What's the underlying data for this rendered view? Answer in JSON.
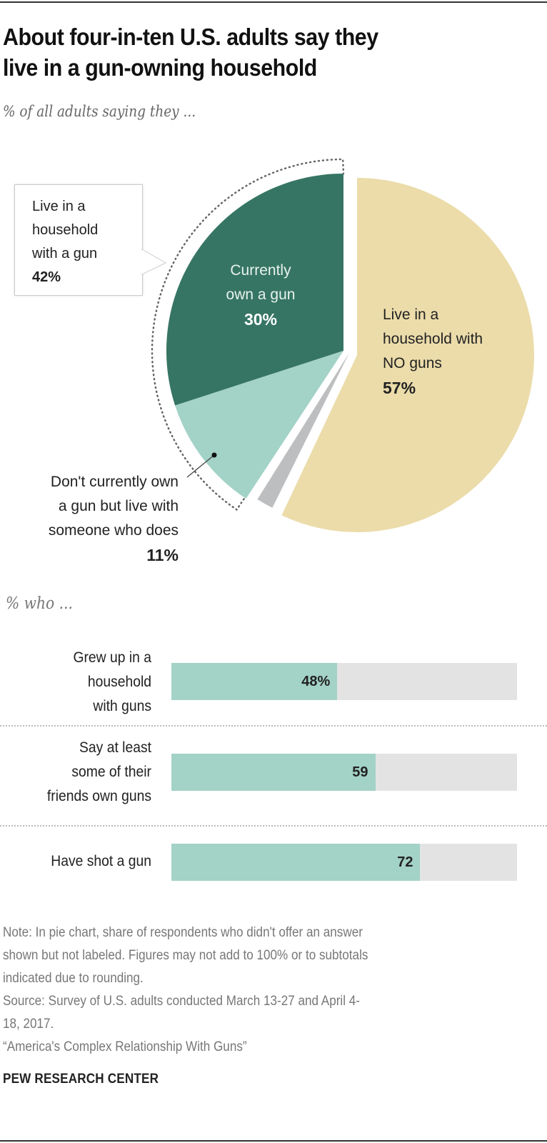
{
  "header": {
    "title_line1": "About four-in-ten U.S. adults say they",
    "title_line2": "live in a gun-owning household",
    "subtitle": "% of all adults saying they ..."
  },
  "pie": {
    "callout": {
      "line1": "Live in a",
      "line2": "household",
      "line3": "with a gun",
      "value": "42%"
    },
    "own": {
      "line1": "Currently",
      "line2": "own a gun",
      "value": "30%"
    },
    "no_guns": {
      "line1": "Live in a",
      "line2": "household with",
      "line3": "NO guns",
      "value": "57%"
    },
    "live_with": {
      "line1": "Don't currently own",
      "line2": "a gun but live with",
      "line3": "someone who does",
      "value": "11%"
    }
  },
  "bars": {
    "section_label": "% who ...",
    "rows": [
      {
        "label_lines": [
          "Grew up in a",
          "household",
          "with guns"
        ],
        "value": 48,
        "value_label": "48%"
      },
      {
        "label_lines": [
          "Say at least",
          "some of their",
          "friends own guns"
        ],
        "value": 59,
        "value_label": "59"
      },
      {
        "label_lines": [
          "Have shot a gun"
        ],
        "value": 72,
        "value_label": "72"
      }
    ]
  },
  "footer": {
    "note_line1": "Note: In pie chart, share of respondents who didn't offer an answer",
    "note_line2": "shown but not labeled. Figures may not add to 100% or to subtotals",
    "note_line3": "indicated due to rounding.",
    "source_line1": "Source: Survey of U.S. adults conducted March 13-27 and April 4-",
    "source_line2": "18, 2017.",
    "report": "“America's Complex Relationship With Guns”",
    "brand": "PEW RESEARCH CENTER"
  },
  "colors": {
    "own_gun": "#367563",
    "live_with_owner": "#a3d2c6",
    "no_answer": "#bdbec0",
    "no_guns": "#ebdcaa",
    "bar_fill": "#a3d2c6",
    "bar_track": "#e3e3e4"
  },
  "chart_data": [
    {
      "type": "pie",
      "title": "About four-in-ten U.S. adults say they live in a gun-owning household",
      "subtitle": "% of all adults saying they ...",
      "categories": [
        "Currently own a gun",
        "Don't currently own a gun but live with someone who does",
        "No answer (not labeled)",
        "Live in a household with NO guns"
      ],
      "values": [
        30,
        11,
        2,
        57
      ],
      "annotations": [
        {
          "text": "Live in a household with a gun",
          "value": 42,
          "spans": [
            "Currently own a gun",
            "Don't currently own a gun but live with someone who does"
          ]
        }
      ]
    },
    {
      "type": "bar",
      "orientation": "horizontal",
      "title": "% who ...",
      "categories": [
        "Grew up in a household with guns",
        "Say at least some of their friends own guns",
        "Have shot a gun"
      ],
      "values": [
        48,
        59,
        72
      ],
      "xlim": [
        0,
        100
      ],
      "grid": false
    }
  ]
}
